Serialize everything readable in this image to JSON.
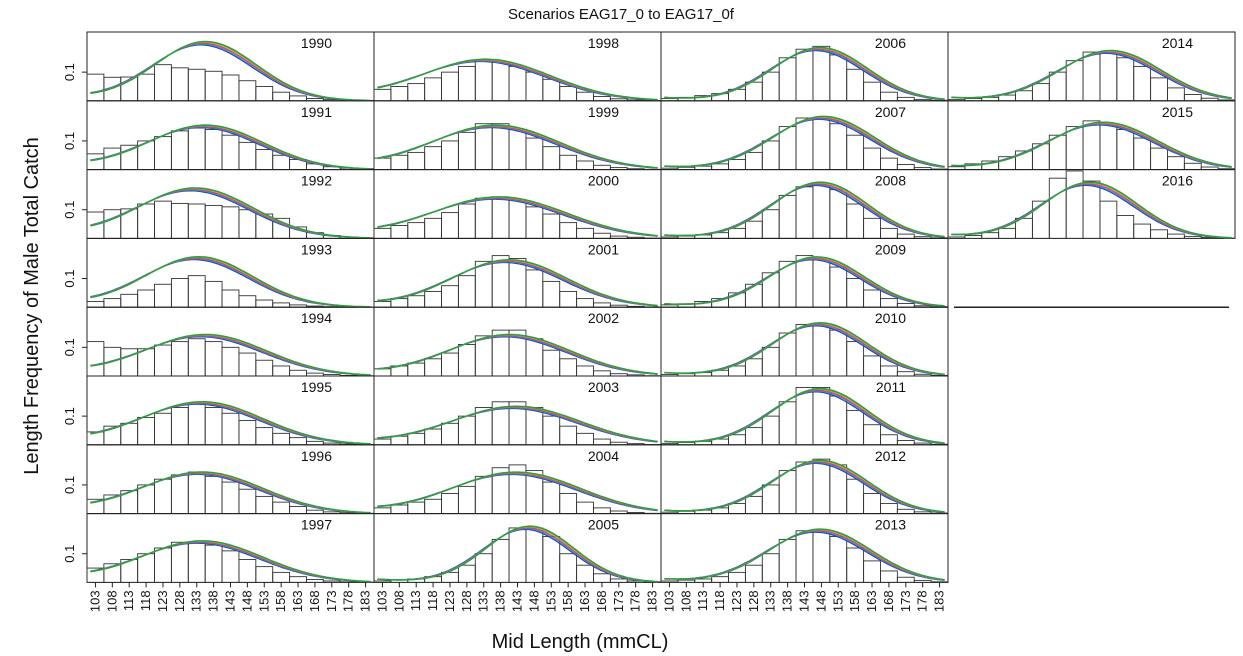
{
  "chart_data": {
    "type": "bar",
    "title": "Scenarios EAG17_0 to EAG17_0f",
    "ylabel": "Length Frequency of Male Total Catch",
    "xlabel": "Mid Length (mmCL)",
    "y_tick_label": "0.1",
    "y_tick_value": 0.1,
    "ylim": [
      0,
      0.24
    ],
    "x_tick_labels": [
      "103",
      "108",
      "113",
      "118",
      "123",
      "128",
      "133",
      "138",
      "143",
      "148",
      "153",
      "158",
      "163",
      "168",
      "173",
      "178",
      "183"
    ],
    "length_bins": [
      103,
      108,
      113,
      118,
      123,
      128,
      133,
      138,
      143,
      148,
      153,
      158,
      163,
      168,
      173,
      178,
      183
    ],
    "layout": "4 columns of 8 panels, filled column-wise",
    "series_colors": [
      "#1f3fa8",
      "#2a8fd6",
      "#d63384",
      "#e0a020",
      "#2e9e3e"
    ],
    "panels": [
      {
        "year": "1990",
        "observed": [
          0.093,
          0.082,
          0.083,
          0.093,
          0.126,
          0.115,
          0.11,
          0.103,
          0.09,
          0.07,
          0.05,
          0.03,
          0.017,
          0.008,
          0.004,
          0.002,
          0.001
        ],
        "fit_peak_length": 135,
        "fit_peak": 0.2,
        "fit_sd": 15
      },
      {
        "year": "1991",
        "observed": [
          0.055,
          0.075,
          0.085,
          0.1,
          0.115,
          0.135,
          0.145,
          0.14,
          0.12,
          0.095,
          0.07,
          0.05,
          0.035,
          0.02,
          0.01,
          0.005,
          0.003
        ],
        "fit_peak_length": 135,
        "fit_peak": 0.15,
        "fit_sd": 17
      },
      {
        "year": "1992",
        "observed": [
          0.092,
          0.1,
          0.103,
          0.12,
          0.13,
          0.122,
          0.12,
          0.115,
          0.11,
          0.1,
          0.085,
          0.07,
          0.04,
          0.02,
          0.01,
          0.005,
          0.002
        ],
        "fit_peak_length": 132,
        "fit_peak": 0.17,
        "fit_sd": 17
      },
      {
        "year": "1993",
        "observed": [
          0.02,
          0.03,
          0.045,
          0.06,
          0.08,
          0.1,
          0.11,
          0.09,
          0.06,
          0.04,
          0.025,
          0.015,
          0.008,
          0.004,
          0.002,
          0.001,
          0.0
        ],
        "fit_peak_length": 133,
        "fit_peak": 0.17,
        "fit_sd": 16
      },
      {
        "year": "1994",
        "observed": [
          0.12,
          0.1,
          0.095,
          0.095,
          0.108,
          0.12,
          0.13,
          0.12,
          0.1,
          0.08,
          0.055,
          0.035,
          0.02,
          0.01,
          0.005,
          0.002,
          0.001
        ],
        "fit_peak_length": 135,
        "fit_peak": 0.14,
        "fit_sd": 18
      },
      {
        "year": "1995",
        "observed": [
          0.045,
          0.065,
          0.075,
          0.095,
          0.11,
          0.13,
          0.145,
          0.13,
          0.11,
          0.085,
          0.06,
          0.04,
          0.025,
          0.012,
          0.006,
          0.003,
          0.001
        ],
        "fit_peak_length": 134,
        "fit_peak": 0.145,
        "fit_sd": 18
      },
      {
        "year": "1996",
        "observed": [
          0.05,
          0.065,
          0.08,
          0.1,
          0.12,
          0.135,
          0.145,
          0.13,
          0.11,
          0.085,
          0.06,
          0.04,
          0.025,
          0.012,
          0.006,
          0.003,
          0.001
        ],
        "fit_peak_length": 134,
        "fit_peak": 0.14,
        "fit_sd": 18
      },
      {
        "year": "1997",
        "observed": [
          0.05,
          0.065,
          0.08,
          0.1,
          0.12,
          0.14,
          0.14,
          0.13,
          0.11,
          0.08,
          0.055,
          0.035,
          0.02,
          0.01,
          0.005,
          0.002,
          0.001
        ],
        "fit_peak_length": 134,
        "fit_peak": 0.14,
        "fit_sd": 18
      },
      {
        "year": "1998",
        "observed": [
          0.04,
          0.05,
          0.06,
          0.08,
          0.1,
          0.12,
          0.14,
          0.135,
          0.12,
          0.1,
          0.075,
          0.05,
          0.03,
          0.015,
          0.007,
          0.003,
          0.001
        ],
        "fit_peak_length": 133,
        "fit_peak": 0.14,
        "fit_sd": 19
      },
      {
        "year": "1999",
        "observed": [
          0.04,
          0.05,
          0.06,
          0.08,
          0.1,
          0.13,
          0.16,
          0.16,
          0.14,
          0.11,
          0.08,
          0.05,
          0.03,
          0.015,
          0.007,
          0.003,
          0.001
        ],
        "fit_peak_length": 136,
        "fit_peak": 0.15,
        "fit_sd": 19
      },
      {
        "year": "2000",
        "observed": [
          0.035,
          0.045,
          0.055,
          0.07,
          0.09,
          0.12,
          0.14,
          0.145,
          0.135,
          0.11,
          0.085,
          0.055,
          0.035,
          0.018,
          0.008,
          0.004,
          0.001
        ],
        "fit_peak_length": 137,
        "fit_peak": 0.14,
        "fit_sd": 20
      },
      {
        "year": "2001",
        "observed": [
          0.02,
          0.03,
          0.04,
          0.055,
          0.075,
          0.11,
          0.16,
          0.18,
          0.17,
          0.13,
          0.09,
          0.055,
          0.03,
          0.015,
          0.007,
          0.003,
          0.001
        ],
        "fit_peak_length": 140,
        "fit_peak": 0.16,
        "fit_sd": 17
      },
      {
        "year": "2002",
        "observed": [
          0.025,
          0.035,
          0.045,
          0.06,
          0.08,
          0.11,
          0.14,
          0.16,
          0.16,
          0.13,
          0.09,
          0.06,
          0.035,
          0.018,
          0.008,
          0.004,
          0.001
        ],
        "fit_peak_length": 140,
        "fit_peak": 0.14,
        "fit_sd": 18
      },
      {
        "year": "2003",
        "observed": [
          0.02,
          0.03,
          0.04,
          0.055,
          0.075,
          0.1,
          0.13,
          0.15,
          0.15,
          0.13,
          0.1,
          0.065,
          0.04,
          0.02,
          0.009,
          0.004,
          0.001
        ],
        "fit_peak_length": 142,
        "fit_peak": 0.13,
        "fit_sd": 19
      },
      {
        "year": "2004",
        "observed": [
          0.02,
          0.03,
          0.04,
          0.05,
          0.07,
          0.095,
          0.13,
          0.16,
          0.17,
          0.15,
          0.11,
          0.07,
          0.04,
          0.02,
          0.009,
          0.004,
          0.001
        ],
        "fit_peak_length": 142,
        "fit_peak": 0.14,
        "fit_sd": 19
      },
      {
        "year": "2005",
        "observed": [
          0.005,
          0.008,
          0.012,
          0.02,
          0.035,
          0.06,
          0.1,
          0.15,
          0.19,
          0.19,
          0.16,
          0.1,
          0.06,
          0.03,
          0.012,
          0.005,
          0.002
        ],
        "fit_peak_length": 146,
        "fit_peak": 0.19,
        "fit_sd": 13
      },
      {
        "year": "2006",
        "observed": [
          0.008,
          0.012,
          0.018,
          0.025,
          0.04,
          0.065,
          0.1,
          0.15,
          0.18,
          0.19,
          0.16,
          0.11,
          0.065,
          0.03,
          0.012,
          0.005,
          0.002
        ],
        "fit_peak_length": 147,
        "fit_peak": 0.18,
        "fit_sd": 14
      },
      {
        "year": "2007",
        "observed": [
          0.005,
          0.008,
          0.012,
          0.02,
          0.035,
          0.06,
          0.1,
          0.15,
          0.18,
          0.18,
          0.16,
          0.12,
          0.075,
          0.04,
          0.018,
          0.007,
          0.002
        ],
        "fit_peak_length": 148,
        "fit_peak": 0.18,
        "fit_sd": 15
      },
      {
        "year": "2008",
        "observed": [
          0.005,
          0.008,
          0.012,
          0.02,
          0.035,
          0.06,
          0.1,
          0.15,
          0.18,
          0.19,
          0.17,
          0.12,
          0.07,
          0.035,
          0.015,
          0.006,
          0.002
        ],
        "fit_peak_length": 147,
        "fit_peak": 0.19,
        "fit_sd": 14
      },
      {
        "year": "2009",
        "observed": [
          0.008,
          0.012,
          0.02,
          0.03,
          0.05,
          0.08,
          0.12,
          0.16,
          0.18,
          0.17,
          0.14,
          0.1,
          0.06,
          0.03,
          0.013,
          0.005,
          0.002
        ],
        "fit_peak_length": 146,
        "fit_peak": 0.17,
        "fit_sd": 14
      },
      {
        "year": "2010",
        "observed": [
          0.005,
          0.008,
          0.012,
          0.02,
          0.035,
          0.06,
          0.1,
          0.15,
          0.18,
          0.18,
          0.16,
          0.12,
          0.07,
          0.035,
          0.015,
          0.006,
          0.002
        ],
        "fit_peak_length": 147,
        "fit_peak": 0.18,
        "fit_sd": 14
      },
      {
        "year": "2011",
        "observed": [
          0.005,
          0.008,
          0.012,
          0.02,
          0.035,
          0.06,
          0.1,
          0.15,
          0.2,
          0.2,
          0.17,
          0.12,
          0.07,
          0.035,
          0.015,
          0.006,
          0.002
        ],
        "fit_peak_length": 147,
        "fit_peak": 0.19,
        "fit_sd": 14
      },
      {
        "year": "2012",
        "observed": [
          0.005,
          0.008,
          0.012,
          0.02,
          0.035,
          0.06,
          0.1,
          0.15,
          0.18,
          0.19,
          0.17,
          0.12,
          0.07,
          0.035,
          0.015,
          0.006,
          0.002
        ],
        "fit_peak_length": 147,
        "fit_peak": 0.18,
        "fit_sd": 14
      },
      {
        "year": "2013",
        "observed": [
          0.005,
          0.008,
          0.012,
          0.02,
          0.035,
          0.06,
          0.1,
          0.15,
          0.18,
          0.18,
          0.16,
          0.12,
          0.075,
          0.04,
          0.018,
          0.007,
          0.002
        ],
        "fit_peak_length": 147,
        "fit_peak": 0.18,
        "fit_sd": 15
      },
      {
        "year": "2014",
        "observed": [
          0.005,
          0.008,
          0.012,
          0.02,
          0.035,
          0.06,
          0.1,
          0.14,
          0.17,
          0.17,
          0.15,
          0.12,
          0.08,
          0.045,
          0.022,
          0.009,
          0.003
        ],
        "fit_peak_length": 148,
        "fit_peak": 0.17,
        "fit_sd": 15
      },
      {
        "year": "2015",
        "observed": [
          0.01,
          0.02,
          0.03,
          0.045,
          0.065,
          0.09,
          0.12,
          0.15,
          0.17,
          0.16,
          0.14,
          0.11,
          0.075,
          0.045,
          0.022,
          0.009,
          0.003
        ],
        "fit_peak_length": 146,
        "fit_peak": 0.16,
        "fit_sd": 16
      },
      {
        "year": "2016",
        "observed": [
          0.005,
          0.01,
          0.02,
          0.035,
          0.07,
          0.13,
          0.21,
          0.28,
          0.2,
          0.13,
          0.08,
          0.05,
          0.03,
          0.015,
          0.007,
          0.003,
          0.001
        ],
        "fit_peak_length": 142,
        "fit_peak": 0.19,
        "fit_sd": 14
      },
      {
        "year": "",
        "observed": [
          0,
          0,
          0,
          0,
          0,
          0,
          0,
          0,
          0,
          0,
          0,
          0,
          0,
          0,
          0,
          0,
          0
        ],
        "fit_peak_length": 0,
        "fit_peak": 0,
        "fit_sd": 0
      }
    ]
  }
}
